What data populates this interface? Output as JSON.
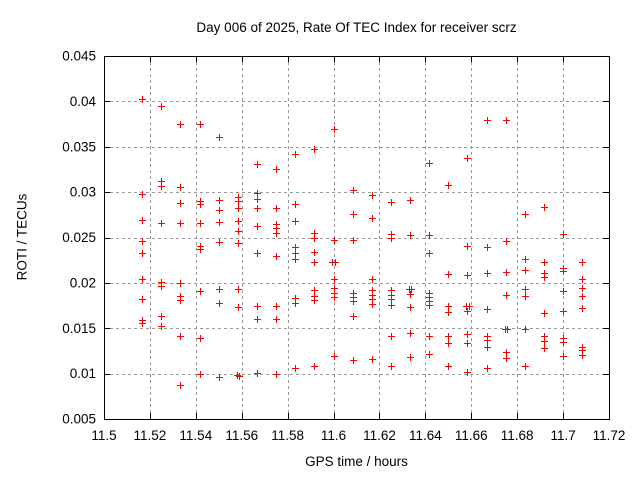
{
  "chart_data": {
    "type": "scatter",
    "title": "Day 006 of 2025, Rate Of TEC Index for receiver scrz",
    "xlabel": "GPS time / hours",
    "ylabel": "ROTI / TECUs",
    "xlim": [
      11.5,
      11.72
    ],
    "ylim": [
      0.005,
      0.045
    ],
    "xticks": [
      11.5,
      11.52,
      11.54,
      11.56,
      11.58,
      11.6,
      11.62,
      11.64,
      11.66,
      11.68,
      11.7,
      11.72
    ],
    "xtick_labels": [
      "11.5",
      "11.52",
      "11.54",
      "11.56",
      "11.58",
      "11.6",
      "11.62",
      "11.64",
      "11.66",
      "11.68",
      "11.7",
      "11.72"
    ],
    "yticks": [
      0.005,
      0.01,
      0.015,
      0.02,
      0.025,
      0.03,
      0.035,
      0.04,
      0.045
    ],
    "ytick_labels": [
      "0.005",
      "0.01",
      "0.015",
      "0.02",
      "0.025",
      "0.03",
      "0.035",
      "0.04",
      "0.045"
    ],
    "grid": "dashed",
    "legend": "none",
    "marker": "plus",
    "marker_color": "#ff0000",
    "grid_color": "#999999",
    "frame_color": "#000000",
    "points": [
      [
        11.5167,
        0.0403
      ],
      [
        11.5167,
        0.0298
      ],
      [
        11.5167,
        0.0269
      ],
      [
        11.5167,
        0.0246
      ],
      [
        11.5167,
        0.0233
      ],
      [
        11.5167,
        0.0204
      ],
      [
        11.5167,
        0.0182
      ],
      [
        11.5167,
        0.0159
      ],
      [
        11.5167,
        0.0156
      ],
      [
        11.525,
        0.0395
      ],
      [
        11.525,
        0.0312
      ],
      [
        11.525,
        0.0307
      ],
      [
        11.525,
        0.0266
      ],
      [
        11.525,
        0.0201
      ],
      [
        11.525,
        0.0197
      ],
      [
        11.525,
        0.0164
      ],
      [
        11.525,
        0.0153
      ],
      [
        11.5333,
        0.0375
      ],
      [
        11.5333,
        0.0306
      ],
      [
        11.5333,
        0.0288
      ],
      [
        11.5333,
        0.0266
      ],
      [
        11.5333,
        0.02
      ],
      [
        11.5333,
        0.0186
      ],
      [
        11.5333,
        0.0181
      ],
      [
        11.5333,
        0.0141
      ],
      [
        11.5333,
        0.0088
      ],
      [
        11.5417,
        0.0375
      ],
      [
        11.5417,
        0.029
      ],
      [
        11.5417,
        0.0287
      ],
      [
        11.5417,
        0.0266
      ],
      [
        11.5417,
        0.0241
      ],
      [
        11.5417,
        0.0237
      ],
      [
        11.5417,
        0.0191
      ],
      [
        11.5417,
        0.0139
      ],
      [
        11.5417,
        0.01
      ],
      [
        11.55,
        0.0361
      ],
      [
        11.55,
        0.0291
      ],
      [
        11.55,
        0.028
      ],
      [
        11.55,
        0.0267
      ],
      [
        11.55,
        0.0245
      ],
      [
        11.55,
        0.0193
      ],
      [
        11.55,
        0.0178
      ],
      [
        11.55,
        0.0096
      ],
      [
        11.5583,
        0.0295
      ],
      [
        11.5583,
        0.029
      ],
      [
        11.5583,
        0.0282
      ],
      [
        11.5583,
        0.0268
      ],
      [
        11.5583,
        0.0257
      ],
      [
        11.5583,
        0.0244
      ],
      [
        11.5583,
        0.0193
      ],
      [
        11.5583,
        0.0173
      ],
      [
        11.5578,
        0.0099
      ],
      [
        11.5588,
        0.0097
      ],
      [
        11.5667,
        0.0331
      ],
      [
        11.5667,
        0.0299
      ],
      [
        11.5667,
        0.0292
      ],
      [
        11.5667,
        0.0283
      ],
      [
        11.5667,
        0.0263
      ],
      [
        11.5667,
        0.0233
      ],
      [
        11.5667,
        0.0174
      ],
      [
        11.5667,
        0.016
      ],
      [
        11.5667,
        0.0101
      ],
      [
        11.575,
        0.0326
      ],
      [
        11.575,
        0.0283
      ],
      [
        11.575,
        0.0265
      ],
      [
        11.575,
        0.0261
      ],
      [
        11.575,
        0.0255
      ],
      [
        11.575,
        0.023
      ],
      [
        11.575,
        0.0174
      ],
      [
        11.575,
        0.016
      ],
      [
        11.575,
        0.01
      ],
      [
        11.5833,
        0.0342
      ],
      [
        11.5833,
        0.0287
      ],
      [
        11.5833,
        0.0268
      ],
      [
        11.5833,
        0.024
      ],
      [
        11.5833,
        0.0233
      ],
      [
        11.5833,
        0.0226
      ],
      [
        11.5833,
        0.0183
      ],
      [
        11.5833,
        0.0178
      ],
      [
        11.5833,
        0.0106
      ],
      [
        11.5917,
        0.0347
      ],
      [
        11.5917,
        0.0255
      ],
      [
        11.5917,
        0.0249
      ],
      [
        11.5917,
        0.0234
      ],
      [
        11.5917,
        0.0223
      ],
      [
        11.5917,
        0.0192
      ],
      [
        11.5917,
        0.0186
      ],
      [
        11.5917,
        0.0181
      ],
      [
        11.5917,
        0.0108
      ],
      [
        11.6,
        0.037
      ],
      [
        11.6,
        0.0247
      ],
      [
        11.5993,
        0.0223
      ],
      [
        11.6007,
        0.0223
      ],
      [
        11.6,
        0.0204
      ],
      [
        11.6,
        0.0194
      ],
      [
        11.6,
        0.0189
      ],
      [
        11.6,
        0.0184
      ],
      [
        11.6,
        0.0119
      ],
      [
        11.6083,
        0.0302
      ],
      [
        11.6083,
        0.0276
      ],
      [
        11.6083,
        0.0247
      ],
      [
        11.6083,
        0.0189
      ],
      [
        11.6083,
        0.0184
      ],
      [
        11.6083,
        0.018
      ],
      [
        11.6083,
        0.0164
      ],
      [
        11.6083,
        0.0115
      ],
      [
        11.6167,
        0.0297
      ],
      [
        11.6167,
        0.0272
      ],
      [
        11.6167,
        0.0204
      ],
      [
        11.6167,
        0.0192
      ],
      [
        11.6167,
        0.0187
      ],
      [
        11.6167,
        0.0182
      ],
      [
        11.6167,
        0.0177
      ],
      [
        11.6167,
        0.0116
      ],
      [
        11.625,
        0.0289
      ],
      [
        11.625,
        0.0254
      ],
      [
        11.625,
        0.025
      ],
      [
        11.625,
        0.0192
      ],
      [
        11.625,
        0.0187
      ],
      [
        11.625,
        0.0182
      ],
      [
        11.625,
        0.0176
      ],
      [
        11.625,
        0.0142
      ],
      [
        11.625,
        0.0108
      ],
      [
        11.6333,
        0.0291
      ],
      [
        11.6333,
        0.0253
      ],
      [
        11.6328,
        0.0193
      ],
      [
        11.6338,
        0.0193
      ],
      [
        11.6333,
        0.0188
      ],
      [
        11.6333,
        0.0173
      ],
      [
        11.6333,
        0.0145
      ],
      [
        11.6333,
        0.0118
      ],
      [
        11.6417,
        0.0332
      ],
      [
        11.6417,
        0.0253
      ],
      [
        11.6417,
        0.0233
      ],
      [
        11.6417,
        0.0189
      ],
      [
        11.6417,
        0.0184
      ],
      [
        11.6417,
        0.018
      ],
      [
        11.6417,
        0.0176
      ],
      [
        11.6417,
        0.0141
      ],
      [
        11.6417,
        0.0122
      ],
      [
        11.65,
        0.0308
      ],
      [
        11.65,
        0.021
      ],
      [
        11.65,
        0.0174
      ],
      [
        11.65,
        0.0168
      ],
      [
        11.65,
        0.0141
      ],
      [
        11.65,
        0.0134
      ],
      [
        11.65,
        0.0108
      ],
      [
        11.6583,
        0.0338
      ],
      [
        11.6583,
        0.0241
      ],
      [
        11.6583,
        0.0209
      ],
      [
        11.6578,
        0.0174
      ],
      [
        11.6588,
        0.0174
      ],
      [
        11.6583,
        0.0169
      ],
      [
        11.6583,
        0.0144
      ],
      [
        11.6583,
        0.0134
      ],
      [
        11.6583,
        0.0102
      ],
      [
        11.6667,
        0.038
      ],
      [
        11.6667,
        0.024
      ],
      [
        11.6667,
        0.0211
      ],
      [
        11.6667,
        0.0171
      ],
      [
        11.6667,
        0.0142
      ],
      [
        11.6667,
        0.0137
      ],
      [
        11.6667,
        0.0129
      ],
      [
        11.6667,
        0.0106
      ],
      [
        11.675,
        0.038
      ],
      [
        11.675,
        0.0246
      ],
      [
        11.675,
        0.0212
      ],
      [
        11.675,
        0.0187
      ],
      [
        11.6745,
        0.0149
      ],
      [
        11.6755,
        0.0149
      ],
      [
        11.675,
        0.0124
      ],
      [
        11.675,
        0.0117
      ],
      [
        11.6833,
        0.0276
      ],
      [
        11.6833,
        0.0226
      ],
      [
        11.6833,
        0.0214
      ],
      [
        11.6833,
        0.0193
      ],
      [
        11.6833,
        0.0185
      ],
      [
        11.6833,
        0.0149
      ],
      [
        11.6833,
        0.0108
      ],
      [
        11.6917,
        0.0284
      ],
      [
        11.6917,
        0.0223
      ],
      [
        11.6917,
        0.0211
      ],
      [
        11.6917,
        0.0207
      ],
      [
        11.6917,
        0.0167
      ],
      [
        11.6917,
        0.0142
      ],
      [
        11.6917,
        0.0136
      ],
      [
        11.6917,
        0.0128
      ],
      [
        11.7,
        0.0254
      ],
      [
        11.7,
        0.0216
      ],
      [
        11.7,
        0.0213
      ],
      [
        11.7,
        0.0191
      ],
      [
        11.7,
        0.0169
      ],
      [
        11.7,
        0.0139
      ],
      [
        11.7,
        0.0135
      ],
      [
        11.7,
        0.0119
      ],
      [
        11.7083,
        0.0223
      ],
      [
        11.7083,
        0.0204
      ],
      [
        11.7083,
        0.0194
      ],
      [
        11.7083,
        0.0185
      ],
      [
        11.7083,
        0.0172
      ],
      [
        11.7083,
        0.0129
      ],
      [
        11.7083,
        0.0126
      ],
      [
        11.7083,
        0.012
      ]
    ]
  }
}
